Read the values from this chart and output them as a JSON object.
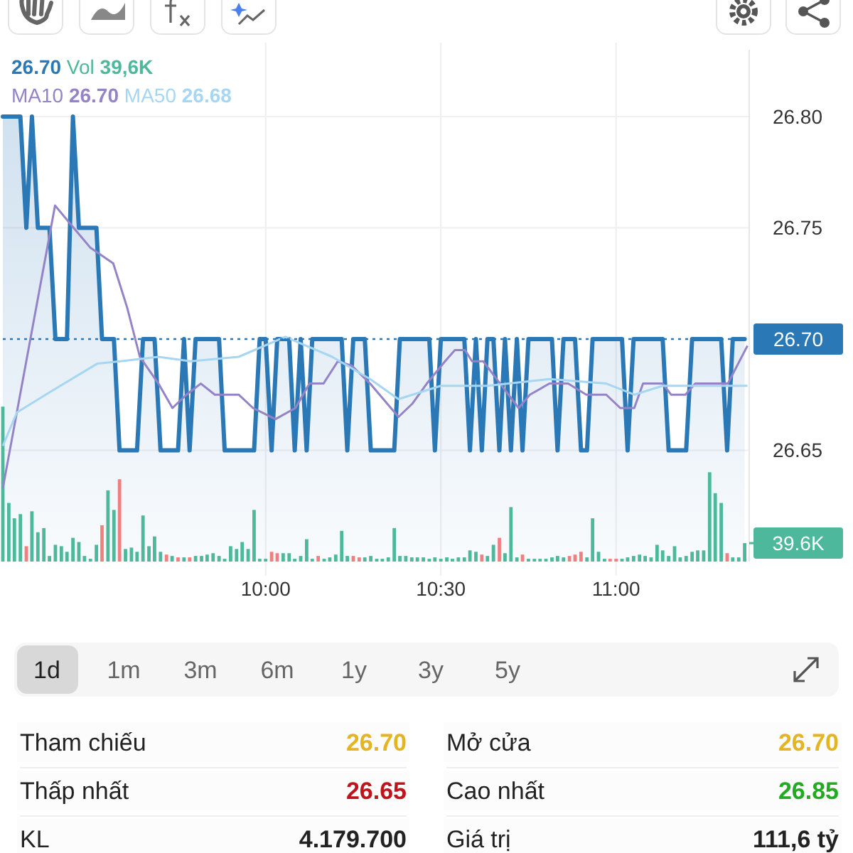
{
  "chart_data": [
    {
      "type": "line",
      "legend": "top",
      "grid": true,
      "xlim": [
        9.25,
        11.38
      ],
      "xticks": [
        {
          "value": 10,
          "label": "10:00"
        },
        {
          "value": 10.5,
          "label": "10:30"
        },
        {
          "value": 11,
          "label": "11:00"
        }
      ],
      "ylim": [
        26.6,
        26.83
      ],
      "yticks": [
        26.65,
        26.75,
        {
          "value": 26.8,
          "label": "26.80"
        }
      ],
      "y2lim": [
        0,
        1100
      ],
      "y2ticks": [
        {
          "value": 39.6,
          "label": "39.6K"
        }
      ],
      "ref_lines": [
        {
          "axis": "y",
          "value": 26.7,
          "label": "26.70",
          "color": "#2a78b6",
          "line_style": "dotted"
        }
      ],
      "annotations": [
        "26.70",
        "39,6K",
        "26.70",
        "26.68"
      ],
      "x": [
        9.25,
        9.267,
        9.283,
        9.3,
        9.317,
        9.333,
        9.35,
        9.367,
        9.383,
        9.4,
        9.417,
        9.433,
        9.45,
        9.467,
        9.483,
        9.5,
        9.517,
        9.533,
        9.55,
        9.567,
        9.583,
        9.6,
        9.617,
        9.633,
        9.65,
        9.667,
        9.683,
        9.7,
        9.717,
        9.733,
        9.75,
        9.767,
        9.783,
        9.8,
        9.817,
        9.833,
        9.85,
        9.867,
        9.883,
        9.9,
        9.917,
        9.933,
        9.95,
        9.967,
        9.983,
        10,
        10.017,
        10.033,
        10.05,
        10.067,
        10.083,
        10.1,
        10.117,
        10.133,
        10.15,
        10.167,
        10.183,
        10.2,
        10.217,
        10.233,
        10.25,
        10.267,
        10.283,
        10.3,
        10.317,
        10.333,
        10.35,
        10.367,
        10.383,
        10.4,
        10.417,
        10.433,
        10.45,
        10.467,
        10.483,
        10.5,
        10.517,
        10.533,
        10.55,
        10.567,
        10.583,
        10.6,
        10.617,
        10.633,
        10.65,
        10.667,
        10.683,
        10.7,
        10.717,
        10.733,
        10.75,
        10.767,
        10.783,
        10.8,
        10.817,
        10.833,
        10.85,
        10.867,
        10.883,
        10.9,
        10.917,
        10.933,
        10.95,
        10.967,
        10.983,
        11,
        11.017,
        11.033,
        11.05,
        11.067,
        11.083,
        11.1,
        11.117,
        11.133,
        11.15,
        11.167,
        11.183,
        11.2,
        11.217,
        11.233,
        11.25,
        11.267,
        11.283,
        11.3,
        11.317,
        11.333,
        11.35,
        11.367
      ],
      "series": [
        {
          "type": "bar",
          "axis": "y2",
          "name": "Vol",
          "color": "#4db89b",
          "values": [
            333,
            126,
            93,
            102,
            33,
            108,
            63,
            72,
            12,
            36,
            33,
            21,
            51,
            42,
            12,
            6,
            36,
            78,
            153,
            111,
            177,
            27,
            30,
            21,
            99,
            33,
            54,
            21,
            15,
            12,
            9,
            9,
            9,
            12,
            12,
            15,
            18,
            12,
            6,
            33,
            27,
            42,
            27,
            111,
            6,
            6,
            21,
            18,
            18,
            18,
            6,
            12,
            48,
            6,
            12,
            6,
            9,
            15,
            66,
            12,
            12,
            9,
            9,
            12,
            6,
            6,
            9,
            72,
            12,
            12,
            9,
            9,
            9,
            6,
            9,
            6,
            9,
            6,
            9,
            9,
            24,
            21,
            15,
            12,
            36,
            51,
            18,
            117,
            9,
            15,
            6,
            6,
            6,
            6,
            9,
            12,
            9,
            12,
            15,
            21,
            9,
            93,
            21,
            6,
            6,
            6,
            6,
            9,
            12,
            15,
            12,
            9,
            36,
            24,
            12,
            33,
            9,
            12,
            21,
            24,
            24,
            192,
            147,
            126,
            18,
            9,
            9,
            39.6
          ],
          "colors": [
            "#4db89b",
            "#4db89b",
            "#4db89b",
            "#4db89b",
            "#f08080",
            "#4db89b",
            "#4db89b",
            "#4db89b",
            "#4db89b",
            "#4db89b",
            "#4db89b",
            "#4db89b",
            "#4db89b",
            "#4db89b",
            "#4db89b",
            "#4db89b",
            "#4db89b",
            "#f08080",
            "#4db89b",
            "#4db89b",
            "#f08080",
            "#4db89b",
            "#4db89b",
            "#4db89b",
            "#4db89b",
            "#4db89b",
            "#4db89b",
            "#4db89b",
            "#f08080",
            "#4db89b",
            "#f08080",
            "#4db89b",
            "#f08080",
            "#4db89b",
            "#4db89b",
            "#4db89b",
            "#4db89b",
            "#4db89b",
            "#4db89b",
            "#4db89b",
            "#4db89b",
            "#4db89b",
            "#4db89b",
            "#4db89b",
            "#4db89b",
            "#4db89b",
            "#f08080",
            "#f08080",
            "#4db89b",
            "#4db89b",
            "#4db89b",
            "#4db89b",
            "#4db89b",
            "#4db89b",
            "#f08080",
            "#4db89b",
            "#4db89b",
            "#4db89b",
            "#4db89b",
            "#4db89b",
            "#f08080",
            "#f08080",
            "#4db89b",
            "#4db89b",
            "#4db89b",
            "#4db89b",
            "#4db89b",
            "#4db89b",
            "#4db89b",
            "#4db89b",
            "#4db89b",
            "#4db89b",
            "#4db89b",
            "#4db89b",
            "#4db89b",
            "#4db89b",
            "#4db89b",
            "#4db89b",
            "#4db89b",
            "#4db89b",
            "#4db89b",
            "#4db89b",
            "#f08080",
            "#4db89b",
            "#4db89b",
            "#f08080",
            "#4db89b",
            "#4db89b",
            "#4db89b",
            "#f08080",
            "#4db89b",
            "#4db89b",
            "#4db89b",
            "#4db89b",
            "#4db89b",
            "#4db89b",
            "#4db89b",
            "#f08080",
            "#f08080",
            "#f08080",
            "#4db89b",
            "#4db89b",
            "#4db89b",
            "#4db89b",
            "#f08080",
            "#f08080",
            "#4db89b",
            "#4db89b",
            "#4db89b",
            "#4db89b",
            "#4db89b",
            "#4db89b",
            "#4db89b",
            "#4db89b",
            "#4db89b",
            "#4db89b",
            "#4db89b",
            "#4db89b",
            "#4db89b",
            "#4db89b",
            "#4db89b",
            "#4db89b",
            "#4db89b",
            "#4db89b",
            "#f08080",
            "#4db89b",
            "#4db89b",
            "#4db89b"
          ]
        },
        {
          "type": "area",
          "color": "#2a78b6",
          "values": [
            26.8,
            26.8,
            26.8,
            26.8,
            26.75,
            26.8,
            26.75,
            26.75,
            26.75,
            26.7,
            26.7,
            26.7,
            26.8,
            26.75,
            26.75,
            26.75,
            26.75,
            26.7,
            26.7,
            26.7,
            26.65,
            26.65,
            26.65,
            26.65,
            26.7,
            26.7,
            26.7,
            26.65,
            26.65,
            26.65,
            26.65,
            26.7,
            26.65,
            26.7,
            26.7,
            26.7,
            26.7,
            26.7,
            26.65,
            26.65,
            26.65,
            26.65,
            26.65,
            26.65,
            26.7,
            26.7,
            26.65,
            26.7,
            26.7,
            26.7,
            26.65,
            26.7,
            26.65,
            26.7,
            26.7,
            26.7,
            26.7,
            26.7,
            26.7,
            26.65,
            26.7,
            26.7,
            26.7,
            26.65,
            26.65,
            26.65,
            26.65,
            26.65,
            26.7,
            26.7,
            26.7,
            26.7,
            26.7,
            26.7,
            26.65,
            26.7,
            26.7,
            26.7,
            26.7,
            26.7,
            26.65,
            26.7,
            26.65,
            26.7,
            26.7,
            26.65,
            26.7,
            26.65,
            26.7,
            26.65,
            26.7,
            26.7,
            26.7,
            26.7,
            26.7,
            26.65,
            26.7,
            26.7,
            26.7,
            26.65,
            26.65,
            26.7,
            26.7,
            26.7,
            26.7,
            26.7,
            26.7,
            26.65,
            26.7,
            26.7,
            26.7,
            26.7,
            26.7,
            26.7,
            26.65,
            26.65,
            26.65,
            26.65,
            26.7,
            26.7,
            26.7,
            26.7,
            26.7,
            26.7,
            26.65,
            26.7,
            26.7,
            26.7
          ]
        },
        {
          "type": "line",
          "name": "MA10",
          "color": "#9583c8",
          "x": [
            9.25,
            9.399,
            9.452,
            9.5,
            9.565,
            9.605,
            9.641,
            9.694,
            9.734,
            9.774,
            9.815,
            9.855,
            9.923,
            9.964,
            10.028,
            10.085,
            10.125,
            10.165,
            10.206,
            10.246,
            10.298,
            10.379,
            10.419,
            10.46,
            10.512,
            10.54,
            10.569,
            10.589,
            10.621,
            10.669,
            10.722,
            10.754,
            10.81,
            10.863,
            10.915,
            10.972,
            11.012,
            11.052,
            11.077,
            11.133,
            11.157,
            11.198,
            11.226,
            11.319,
            11.375
          ],
          "values": [
            26.633,
            26.76,
            26.75,
            26.741,
            26.734,
            26.714,
            26.692,
            26.68,
            26.669,
            26.675,
            26.68,
            26.675,
            26.675,
            26.669,
            26.664,
            26.669,
            26.68,
            26.68,
            26.69,
            26.688,
            26.68,
            26.665,
            26.671,
            26.68,
            26.69,
            26.695,
            26.695,
            26.69,
            26.69,
            26.68,
            26.669,
            26.675,
            26.68,
            26.68,
            26.675,
            26.675,
            26.669,
            26.669,
            26.68,
            26.68,
            26.675,
            26.675,
            26.68,
            26.68,
            26.697
          ]
        },
        {
          "type": "line",
          "name": "MA50",
          "color": "#a6d6f2",
          "x": [
            9.25,
            9.29,
            9.383,
            9.52,
            9.585,
            9.694,
            9.786,
            9.923,
            10.056,
            10.19,
            10.298,
            10.379,
            10.5,
            10.633,
            10.81,
            10.972,
            11.052,
            11.133,
            11.375
          ],
          "values": [
            26.652,
            26.667,
            26.676,
            26.689,
            26.69,
            26.692,
            26.69,
            26.692,
            26.701,
            26.692,
            26.682,
            26.673,
            26.679,
            26.679,
            26.682,
            26.68,
            26.675,
            26.679,
            26.679
          ]
        }
      ]
    },
    {
      "type": "other",
      "categories": [
        "1d",
        "1m",
        "3m",
        "6m",
        "1y",
        "3y",
        "5y"
      ]
    },
    {
      "type": "other",
      "categories": [
        "Tham chiếu",
        "Mở cửa",
        "Thấp nhất",
        "Cao nhất",
        "KL",
        "Giá trị"
      ],
      "value_labels": [
        "26.70",
        "26.70",
        "26.65",
        "26.85",
        "4.179.700",
        "111,6 tỷ"
      ],
      "colors": [
        "#e6b422",
        "#e6b422",
        "#c0141c",
        "#22aa22",
        "#222222",
        "#222222"
      ]
    }
  ]
}
